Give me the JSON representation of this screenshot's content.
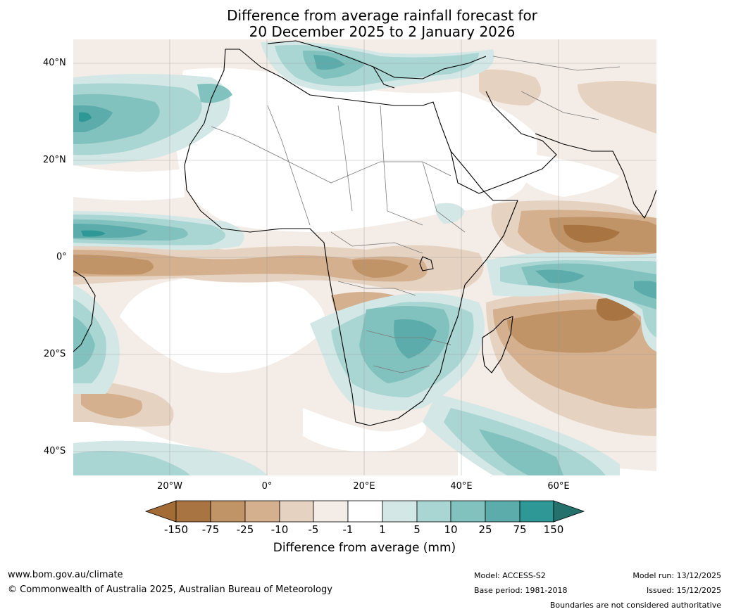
{
  "title": {
    "line1": "Difference from average rainfall forecast for",
    "line2": "20 December 2025 to 2 January 2026"
  },
  "lat_labels": [
    "40°N",
    "20°N",
    "0°",
    "20°S",
    "40°S"
  ],
  "lon_labels": [
    "20°W",
    "0°",
    "20°E",
    "40°E",
    "60°E"
  ],
  "colorbar": {
    "title": "Difference from average (mm)",
    "ticks": [
      "-150",
      "-75",
      "-25",
      "-10",
      "-5",
      "-1",
      "1",
      "5",
      "10",
      "25",
      "75",
      "150"
    ],
    "colors": [
      "#a36b35",
      "#a87442",
      "#c19468",
      "#d4b08e",
      "#e5d2c0",
      "#f4ece6",
      "#ffffff",
      "#d3e8e6",
      "#a9d5d2",
      "#82c2be",
      "#5bacaa",
      "#2e9896",
      "#23706d"
    ]
  },
  "footer": {
    "url": "www.bom.gov.au/climate",
    "copyright": "© Commonwealth of Australia 2025, Australian Bureau of Meteorology",
    "model": "Model: ACCESS-S2",
    "base_period": "Base period: 1981-2018",
    "model_run": "Model run: 13/12/2025",
    "issued": "Issued: 15/12/2025",
    "disclaimer": "Boundaries are not considered authoritative"
  }
}
